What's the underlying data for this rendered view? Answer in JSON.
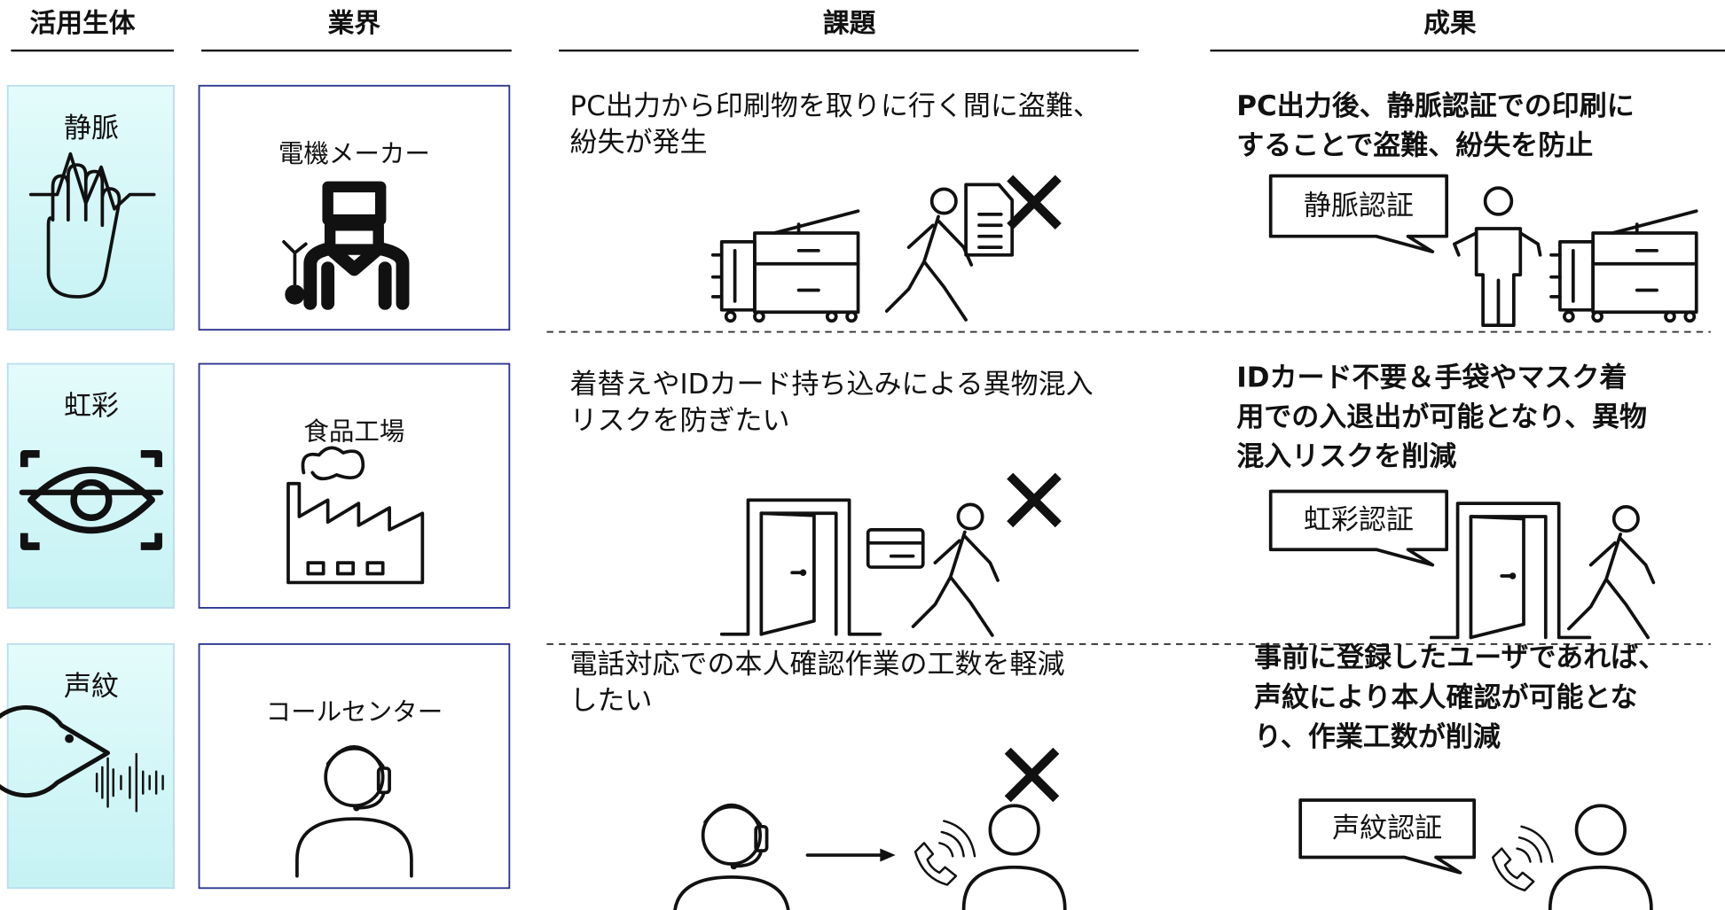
{
  "header": {
    "columns": [
      "活用生体",
      "業界",
      "課題",
      "成果"
    ]
  },
  "rows": [
    {
      "biometric": "静脈",
      "industry": "電機メーカー",
      "problem": [
        "PC出力から印刷物を取りに行く間に盗難、",
        "紛失が発生"
      ],
      "result": [
        "PC出力後、静脈認証での印刷に",
        "することで盗難、紛失を防止"
      ],
      "callout": "静脈認証"
    },
    {
      "biometric": "虹彩",
      "industry": "食品工場",
      "problem": [
        "着替えやIDカード持ち込みによる異物混入",
        "リスクを防ぎたい"
      ],
      "result": [
        "IDカード不要＆手袋やマスク着",
        "用での入退出が可能となり、異物",
        "混入リスクを削減"
      ],
      "callout": "虹彩認証"
    },
    {
      "biometric": "声紋",
      "industry": "コールセンター",
      "problem": [
        "電話対応での本人確認作業の工数を軽減",
        "したい"
      ],
      "result": [
        "事前に登録したユーザであれば、",
        "声紋により本人確認が可能とな",
        "り、作業工数が削減"
      ],
      "callout": "声紋認証"
    }
  ]
}
